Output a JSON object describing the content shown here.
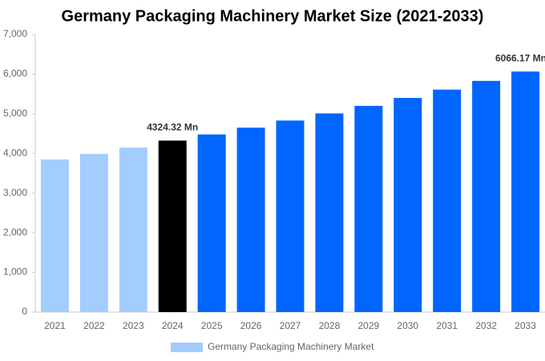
{
  "chart_data": {
    "type": "bar",
    "title": "Germany Packaging Machinery Market Size (2021-2033)",
    "categories": [
      "2021",
      "2022",
      "2023",
      "2024",
      "2025",
      "2026",
      "2027",
      "2028",
      "2029",
      "2030",
      "2031",
      "2032",
      "2033"
    ],
    "series": [
      {
        "name": "Germany Packaging Machinery Market",
        "color": "#a3cdfd",
        "colors": [
          "#a3cdfd",
          "#a3cdfd",
          "#a3cdfd",
          "#000000",
          "#0066ff",
          "#0066ff",
          "#0066ff",
          "#0066ff",
          "#0066ff",
          "#0066ff",
          "#0066ff",
          "#0066ff",
          "#0066ff"
        ],
        "values": [
          3850,
          3990,
          4150,
          4324.32,
          4480,
          4650,
          4830,
          5010,
          5200,
          5400,
          5610,
          5830,
          6066.17
        ],
        "value_labels": [
          null,
          null,
          null,
          "4324.32 Mn",
          null,
          null,
          null,
          null,
          null,
          null,
          null,
          null,
          "6066.17 Mn"
        ]
      }
    ],
    "ylim": [
      0,
      7000
    ],
    "yticks": [
      0,
      {
        "value": 1000,
        "label": "1,000"
      },
      {
        "value": 2000,
        "label": "2,000"
      },
      {
        "value": 3000,
        "label": "3,000"
      },
      {
        "value": 4000,
        "label": "4,000"
      },
      {
        "value": 5000,
        "label": "5,000"
      },
      {
        "value": 6000,
        "label": "6,000"
      },
      {
        "value": 7000,
        "label": "7,000"
      }
    ],
    "grid": false
  }
}
